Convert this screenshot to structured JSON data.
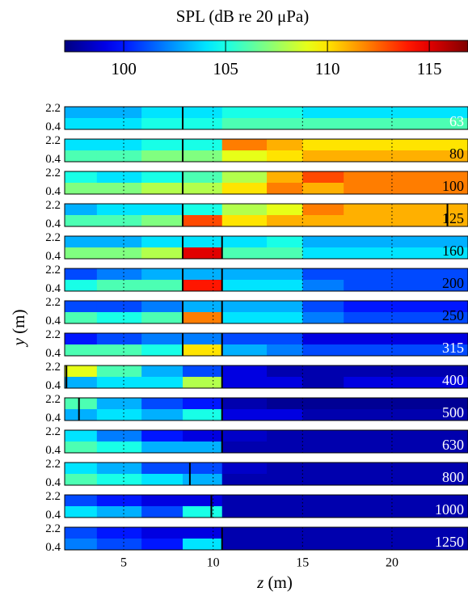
{
  "chart_data": {
    "type": "heatmap",
    "title": "SPL (dB re 20  μPa)",
    "clim": [
      97.1,
      116.9
    ],
    "cticks": [
      100,
      105,
      110,
      115
    ],
    "xlabel_var": "z",
    "xlabel_unit": "(m)",
    "ylabel_var": "y",
    "ylabel_unit": "(m)",
    "xlim": [
      1.7,
      24.25
    ],
    "xticks": [
      5,
      10,
      15,
      20
    ],
    "ylim": [
      0.2,
      2.4
    ],
    "yticks": [
      0.4,
      2.2
    ],
    "x_edges": [
      1.7,
      3.5,
      6,
      8.3,
      10.5,
      13,
      15,
      17.3,
      24.25
    ],
    "bands": [
      {
        "label": "63",
        "label_color": "#ffffff",
        "lines": [
          8.3
        ],
        "values": [
          [
            103,
            103,
            104,
            104,
            105,
            105,
            104,
            104
          ],
          [
            104,
            104,
            105,
            105,
            106,
            106,
            106,
            106
          ]
        ]
      },
      {
        "label": "80",
        "label_color": "#000000",
        "lines": [
          8.3
        ],
        "values": [
          [
            104,
            104,
            105,
            105,
            112,
            111,
            110,
            110
          ],
          [
            106,
            106,
            107,
            107,
            109,
            110,
            111,
            111
          ]
        ]
      },
      {
        "label": "100",
        "label_color": "#000000",
        "lines": [
          8.3
        ],
        "values": [
          [
            105,
            104,
            105,
            106,
            108,
            111,
            113,
            112
          ],
          [
            107,
            107,
            108,
            108,
            110,
            112,
            111,
            112
          ]
        ]
      },
      {
        "label": "125",
        "label_color": "#000000",
        "lines": [
          8.3,
          23.1
        ],
        "values": [
          [
            103,
            104,
            104,
            105,
            108,
            109,
            112,
            111
          ],
          [
            106,
            106,
            107,
            113,
            110,
            111,
            111,
            111
          ]
        ]
      },
      {
        "label": "160",
        "label_color": "#000000",
        "lines": [
          8.3,
          10.5
        ],
        "values": [
          [
            103,
            103,
            104,
            104,
            104,
            105,
            103,
            103
          ],
          [
            107,
            107,
            108,
            115,
            106,
            106,
            104,
            104
          ]
        ]
      },
      {
        "label": "200",
        "label_color": "#000000",
        "lines": [
          8.3,
          10.5
        ],
        "values": [
          [
            101,
            102,
            103,
            103,
            103,
            103,
            101,
            101
          ],
          [
            105,
            106,
            106,
            114,
            104,
            104,
            102,
            101
          ]
        ]
      },
      {
        "label": "250",
        "label_color": "#000000",
        "lines": [
          8.3,
          10.5
        ],
        "values": [
          [
            101,
            101,
            102,
            103,
            103,
            103,
            101,
            100
          ],
          [
            106,
            105,
            106,
            112,
            104,
            104,
            102,
            101
          ]
        ]
      },
      {
        "label": "315",
        "label_color": "#ffffff",
        "lines": [
          8.3,
          10.5
        ],
        "values": [
          [
            100,
            101,
            102,
            102,
            101,
            101,
            99,
            99
          ],
          [
            106,
            106,
            105,
            110,
            103,
            102,
            101,
            101
          ]
        ]
      },
      {
        "label": "400",
        "label_color": "#ffffff",
        "lines": [
          1.8,
          10.5
        ],
        "values": [
          [
            109,
            106,
            103,
            101,
            99,
            98,
            98,
            98
          ],
          [
            103,
            104,
            104,
            108,
            99,
            99,
            98,
            99
          ]
        ]
      },
      {
        "label": "500",
        "label_color": "#ffffff",
        "lines": [
          2.5,
          10.5
        ],
        "values": [
          [
            106,
            103,
            101,
            100,
            98,
            97.5,
            97.5,
            97.5
          ],
          [
            103,
            104,
            103,
            105,
            99,
            99,
            98,
            98
          ]
        ]
      },
      {
        "label": "630",
        "label_color": "#ffffff",
        "lines": [
          10.5
        ],
        "values": [
          [
            104,
            102,
            100,
            99,
            98.5,
            98,
            98,
            98
          ],
          [
            106,
            105,
            103,
            103,
            98,
            98,
            98,
            98
          ]
        ]
      },
      {
        "label": "800",
        "label_color": "#ffffff",
        "lines": [
          8.7
        ],
        "values": [
          [
            104,
            103,
            101,
            101,
            98.5,
            98,
            98,
            98
          ],
          [
            106,
            105,
            104,
            103,
            98,
            98,
            98,
            98
          ]
        ]
      },
      {
        "label": "1000",
        "label_color": "#ffffff",
        "lines": [
          9.9
        ],
        "values": [
          [
            101,
            100,
            99,
            99,
            98,
            98,
            98,
            98
          ],
          [
            104,
            103,
            101,
            105,
            98,
            98,
            98,
            98
          ]
        ]
      },
      {
        "label": "1250",
        "label_color": "#ffffff",
        "lines": [
          10.5
        ],
        "values": [
          [
            101,
            100,
            99,
            99,
            98,
            98,
            98,
            98
          ],
          [
            102,
            101,
            100,
            104,
            98,
            98,
            98,
            98
          ]
        ]
      }
    ]
  }
}
